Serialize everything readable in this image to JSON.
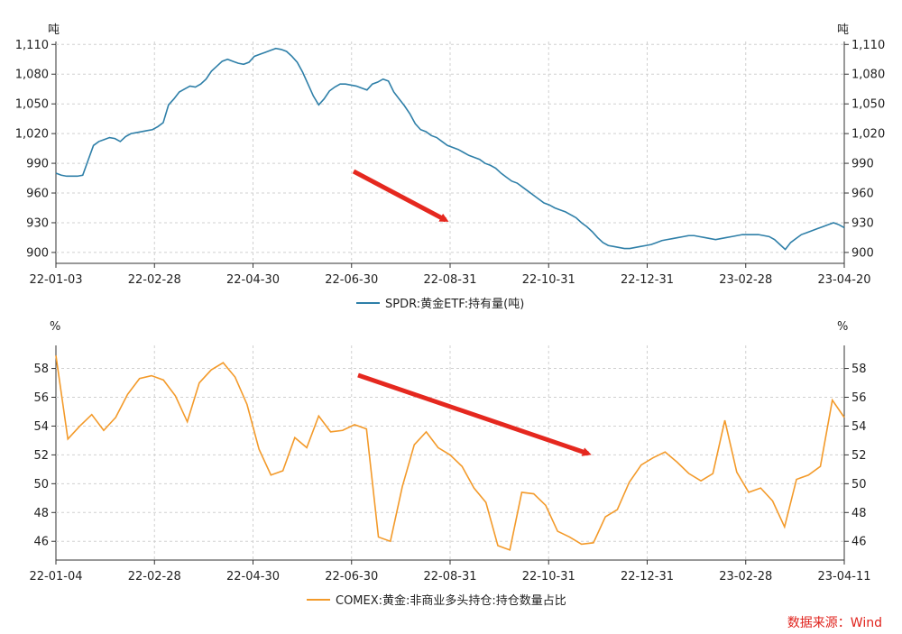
{
  "source_note": "数据来源：Wind",
  "chart_data": [
    {
      "type": "line",
      "legend": "SPDR:黄金ETF:持有量(吨)",
      "unit_left": "吨",
      "unit_right": "吨",
      "x_ticks": [
        "22-01-03",
        "22-02-28",
        "22-04-30",
        "22-06-30",
        "22-08-31",
        "22-10-31",
        "22-12-31",
        "23-02-28",
        "23-04-20"
      ],
      "y_ticks": [
        "1,110",
        "1,080",
        "1,050",
        "1,020",
        "990",
        "960",
        "930",
        "900"
      ],
      "y_tick_values": [
        1110,
        1080,
        1050,
        1020,
        990,
        960,
        930,
        900
      ],
      "ylim": [
        889,
        1113
      ],
      "grid": true,
      "legend_position": "bottom-center",
      "color": "#2e7fa8",
      "annotation": "red arrow pointing down-right indicating decline",
      "series": [
        {
          "values": [
            980,
            978,
            977,
            977,
            977,
            978,
            993,
            1008,
            1012,
            1014,
            1016,
            1015,
            1012,
            1017,
            1020,
            1021,
            1022,
            1023,
            1024,
            1027,
            1031,
            1049,
            1055,
            1062,
            1065,
            1068,
            1067,
            1070,
            1075,
            1083,
            1088,
            1093,
            1095,
            1093,
            1091,
            1090,
            1092,
            1098,
            1100,
            1102,
            1104,
            1106,
            1105,
            1103,
            1098,
            1092,
            1082,
            1070,
            1058,
            1049,
            1055,
            1063,
            1067,
            1070,
            1070,
            1069,
            1068,
            1066,
            1064,
            1070,
            1072,
            1075,
            1073,
            1062,
            1055,
            1048,
            1040,
            1030,
            1024,
            1022,
            1018,
            1016,
            1012,
            1008,
            1006,
            1004,
            1001,
            998,
            996,
            994,
            990,
            988,
            985,
            980,
            976,
            972,
            970,
            966,
            962,
            958,
            954,
            950,
            948,
            945,
            943,
            941,
            938,
            935,
            930,
            926,
            921,
            915,
            910,
            907,
            906,
            905,
            904,
            904,
            905,
            906,
            907,
            908,
            910,
            912,
            913,
            914,
            915,
            916,
            917,
            917,
            916,
            915,
            914,
            913,
            914,
            915,
            916,
            917,
            918,
            918,
            918,
            918,
            917,
            916,
            913,
            908,
            903,
            910,
            914,
            918,
            920,
            922,
            924,
            926,
            928,
            930,
            928,
            925
          ]
        }
      ]
    },
    {
      "type": "line",
      "legend": "COMEX:黄金:非商业多头持仓:持仓数量占比",
      "unit_left": "%",
      "unit_right": "%",
      "x_ticks": [
        "22-01-04",
        "22-02-28",
        "22-04-30",
        "22-06-30",
        "22-08-31",
        "22-10-31",
        "22-12-31",
        "23-02-28",
        "23-04-11"
      ],
      "y_ticks": [
        "58",
        "56",
        "54",
        "52",
        "50",
        "48",
        "46"
      ],
      "y_tick_values": [
        58,
        56,
        54,
        52,
        50,
        48,
        46
      ],
      "ylim": [
        44.7,
        59.6
      ],
      "grid": true,
      "legend_position": "bottom-center",
      "color": "#f39a2a",
      "annotation": "red arrow pointing down-right indicating decline",
      "series": [
        {
          "values": [
            58.9,
            53.1,
            54.0,
            54.8,
            53.7,
            54.6,
            56.2,
            57.3,
            57.5,
            57.2,
            56.1,
            54.3,
            57.0,
            57.9,
            58.4,
            57.4,
            55.5,
            52.4,
            50.6,
            50.9,
            53.2,
            52.5,
            54.7,
            53.6,
            53.7,
            54.1,
            53.8,
            46.3,
            46.0,
            49.8,
            52.7,
            53.6,
            52.5,
            52.0,
            51.2,
            49.7,
            48.7,
            45.7,
            45.4,
            49.4,
            49.3,
            48.5,
            46.7,
            46.3,
            45.8,
            45.9,
            47.7,
            48.2,
            50.1,
            51.3,
            51.8,
            52.2,
            51.5,
            50.7,
            50.2,
            50.7,
            54.4,
            50.8,
            49.4,
            49.7,
            48.8,
            47.0,
            50.3,
            50.6,
            51.2,
            55.8,
            54.6
          ]
        }
      ]
    }
  ]
}
